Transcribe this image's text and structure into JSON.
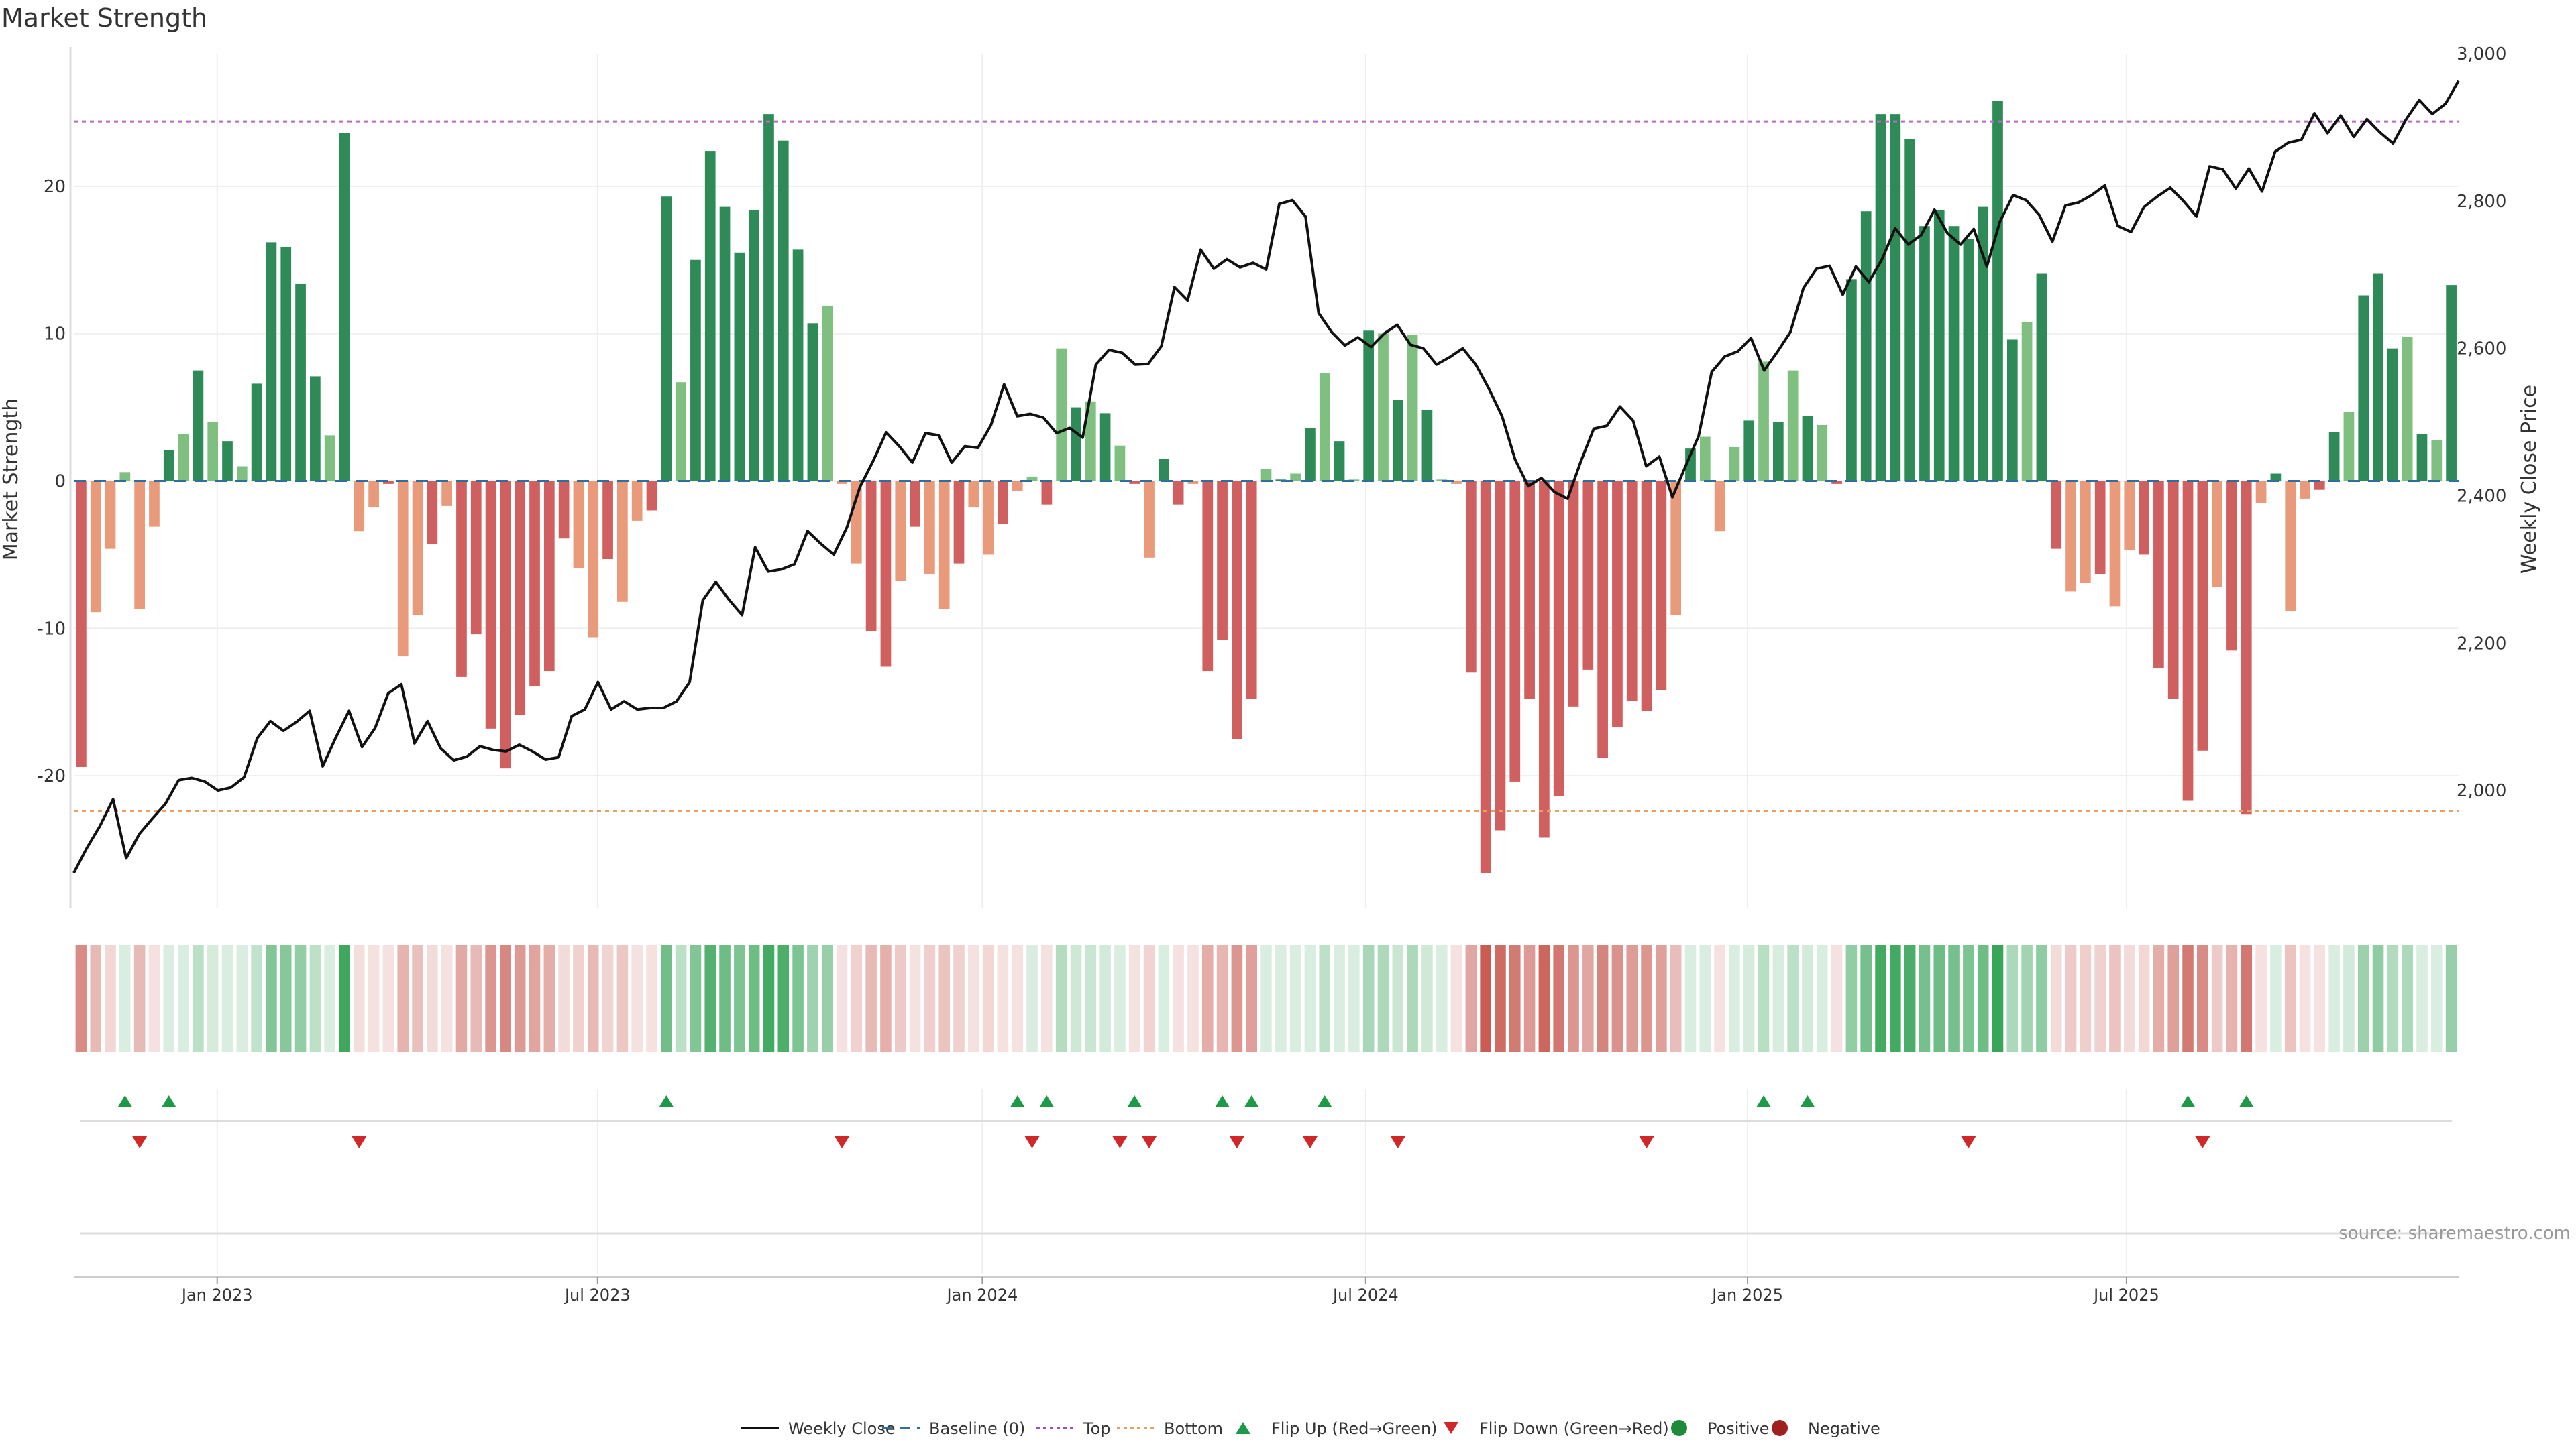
{
  "chart_data": {
    "type": "bar",
    "title": "Market Strength",
    "ylabel": "Market Strength",
    "y2label": "Weekly Close Price",
    "ylim": [
      -29,
      29
    ],
    "y2lim": [
      1840,
      3000
    ],
    "yticks": [
      {
        "v": 20,
        "label": "20"
      },
      {
        "v": 10,
        "label": "10"
      },
      {
        "v": 0,
        "label": "0"
      },
      {
        "v": -10,
        "label": "-10"
      },
      {
        "v": -20,
        "label": "-20"
      }
    ],
    "y2ticks": [
      {
        "v": 3000,
        "label": "3,000"
      },
      {
        "v": 2800,
        "label": "2,800"
      },
      {
        "v": 2600,
        "label": "2,600"
      },
      {
        "v": 2400,
        "label": "2,400"
      },
      {
        "v": 2200,
        "label": "2,200"
      },
      {
        "v": 2000,
        "label": "2,000"
      }
    ],
    "xticks": [
      {
        "i": 9.3,
        "label": "Jan 2023"
      },
      {
        "i": 35.3,
        "label": "Jul 2023"
      },
      {
        "i": 61.6,
        "label": "Jan 2024"
      },
      {
        "i": 87.8,
        "label": "Jul 2024"
      },
      {
        "i": 113.9,
        "label": "Jan 2025"
      },
      {
        "i": 139.8,
        "label": "Jul 2025"
      }
    ],
    "top_line": 24.4,
    "bottom_line": -22.4,
    "strength": [
      -19.4,
      -8.9,
      -4.6,
      0.6,
      -8.7,
      -3.1,
      2.1,
      3.2,
      7.5,
      4.0,
      2.7,
      1.0,
      6.6,
      16.2,
      15.9,
      13.4,
      7.1,
      3.1,
      23.6,
      -3.4,
      -1.8,
      -0.2,
      -11.9,
      -9.1,
      -4.3,
      -1.7,
      -13.3,
      -10.4,
      -16.8,
      -19.5,
      -15.9,
      -13.9,
      -12.9,
      -3.9,
      -5.9,
      -10.6,
      -5.3,
      -8.2,
      -2.7,
      -2.0,
      19.3,
      6.7,
      15.0,
      22.4,
      18.6,
      15.5,
      18.4,
      24.9,
      23.1,
      15.7,
      10.7,
      11.9,
      -0.2,
      -5.6,
      -10.2,
      -12.6,
      -6.8,
      -3.1,
      -6.3,
      -8.7,
      -5.6,
      -1.8,
      -5.0,
      -2.9,
      -0.7,
      0.3,
      -1.6,
      9.0,
      5.0,
      5.4,
      4.6,
      2.4,
      -0.2,
      -5.2,
      1.5,
      -1.6,
      -0.2,
      -12.9,
      -10.8,
      -17.5,
      -14.8,
      0.8,
      0.1,
      0.5,
      3.6,
      7.3,
      2.7,
      0.1,
      10.2,
      10.0,
      5.5,
      9.9,
      4.8,
      0.1,
      -0.2,
      -13.0,
      -26.6,
      -23.7,
      -20.4,
      -14.8,
      -24.2,
      -21.4,
      -15.3,
      -12.8,
      -18.8,
      -16.7,
      -14.9,
      -15.6,
      -14.2,
      -9.1,
      2.2,
      3.0,
      -3.4,
      2.3,
      4.1,
      8.1,
      4.0,
      7.5,
      4.4,
      3.8,
      -0.2,
      13.7,
      18.3,
      24.9,
      24.9,
      23.2,
      17.3,
      18.4,
      17.3,
      16.4,
      18.6,
      25.8,
      9.6,
      10.8,
      14.1,
      -4.6,
      -7.5,
      -6.9,
      -6.3,
      -8.5,
      -4.7,
      -5.0,
      -12.7,
      -14.8,
      -21.7,
      -18.3,
      -7.2,
      -11.5,
      -22.6,
      -1.5,
      0.5,
      -8.8,
      -1.2,
      -0.6,
      3.3,
      4.7,
      12.6,
      14.1,
      9.0,
      9.8,
      3.2,
      2.8,
      13.3
    ],
    "price": [
      1888,
      1922,
      1952,
      1988,
      1908,
      1941,
      1962,
      1982,
      2014,
      2017,
      2012,
      2000,
      2004,
      2018,
      2071,
      2094,
      2081,
      2093,
      2108,
      2033,
      2072,
      2108,
      2059,
      2085,
      2132,
      2144,
      2064,
      2094,
      2057,
      2041,
      2046,
      2060,
      2055,
      2053,
      2062,
      2053,
      2042,
      2045,
      2101,
      2110,
      2147,
      2110,
      2121,
      2110,
      2112,
      2112,
      2121,
      2147,
      2258,
      2283,
      2259,
      2238,
      2330,
      2297,
      2300,
      2307,
      2352,
      2335,
      2320,
      2357,
      2412,
      2447,
      2486,
      2467,
      2445,
      2485,
      2482,
      2445,
      2467,
      2465,
      2496,
      2551,
      2508,
      2511,
      2506,
      2485,
      2492,
      2479,
      2578,
      2598,
      2594,
      2578,
      2579,
      2603,
      2683,
      2665,
      2734,
      2708,
      2721,
      2710,
      2716,
      2707,
      2796,
      2801,
      2779,
      2648,
      2622,
      2604,
      2615,
      2602,
      2620,
      2632,
      2605,
      2600,
      2578,
      2588,
      2600,
      2578,
      2545,
      2508,
      2449,
      2413,
      2424,
      2405,
      2396,
      2446,
      2491,
      2495,
      2521,
      2502,
      2440,
      2453,
      2398,
      2440,
      2481,
      2568,
      2589,
      2596,
      2614,
      2570,
      2595,
      2622,
      2682,
      2708,
      2712,
      2673,
      2711,
      2690,
      2721,
      2763,
      2741,
      2754,
      2788,
      2756,
      2741,
      2762,
      2711,
      2772,
      2808,
      2801,
      2781,
      2745,
      2794,
      2798,
      2808,
      2821,
      2766,
      2758,
      2792,
      2806,
      2818,
      2800,
      2779,
      2847,
      2843,
      2817,
      2844,
      2813,
      2867,
      2879,
      2883,
      2919,
      2892,
      2916,
      2887,
      2911,
      2893,
      2878,
      2911,
      2937,
      2918,
      2932,
      2963
    ],
    "heat_strip": [
      -0.7,
      -0.42,
      -0.24,
      0.05,
      -0.42,
      -0.16,
      0.1,
      0.16,
      0.33,
      0.2,
      0.14,
      0.06,
      0.3,
      0.6,
      0.58,
      0.52,
      0.32,
      0.15,
      0.92,
      -0.2,
      -0.1,
      -0.05,
      -0.46,
      -0.38,
      -0.22,
      -0.1,
      -0.52,
      -0.42,
      -0.64,
      -0.72,
      -0.62,
      -0.55,
      -0.5,
      -0.22,
      -0.28,
      -0.42,
      -0.26,
      -0.34,
      -0.14,
      -0.11,
      0.68,
      0.33,
      0.6,
      0.82,
      0.7,
      0.62,
      0.7,
      0.9,
      0.85,
      0.62,
      0.46,
      0.5,
      -0.05,
      -0.28,
      -0.42,
      -0.48,
      -0.32,
      -0.16,
      -0.3,
      -0.36,
      -0.28,
      -0.11,
      -0.24,
      -0.16,
      -0.05,
      0.05,
      -0.1,
      0.36,
      0.24,
      0.26,
      0.22,
      0.13,
      -0.05,
      -0.26,
      0.08,
      -0.1,
      -0.05,
      -0.5,
      -0.44,
      -0.64,
      -0.58,
      0.05,
      0.02,
      0.04,
      0.18,
      0.32,
      0.14,
      0.02,
      0.42,
      0.4,
      0.26,
      0.4,
      0.23,
      0.02,
      -0.05,
      -0.54,
      -0.98,
      -0.9,
      -0.8,
      -0.62,
      -0.92,
      -0.82,
      -0.64,
      -0.54,
      -0.74,
      -0.66,
      -0.6,
      -0.64,
      -0.58,
      -0.4,
      0.1,
      0.14,
      -0.18,
      0.11,
      0.2,
      0.34,
      0.19,
      0.33,
      0.21,
      0.18,
      -0.05,
      0.52,
      0.66,
      0.9,
      0.9,
      0.86,
      0.66,
      0.7,
      0.66,
      0.62,
      0.7,
      0.95,
      0.4,
      0.45,
      0.54,
      -0.22,
      -0.32,
      -0.3,
      -0.28,
      -0.36,
      -0.22,
      -0.24,
      -0.5,
      -0.58,
      -0.8,
      -0.7,
      -0.32,
      -0.46,
      -0.82,
      -0.1,
      0.04,
      -0.36,
      -0.08,
      -0.06,
      0.15,
      0.22,
      0.48,
      0.54,
      0.38,
      0.4,
      0.15,
      0.14,
      0.5
    ],
    "flip_up": [
      3,
      6,
      40,
      64,
      66,
      72,
      78,
      80,
      85,
      115,
      118,
      144,
      148
    ],
    "flip_down": [
      4,
      19,
      52,
      65,
      71,
      73,
      79,
      84,
      90,
      107,
      129,
      145
    ],
    "series": [
      {
        "name": "Weekly Close",
        "style": "line",
        "color": "#111111"
      },
      {
        "name": "Baseline (0)",
        "style": "dashed",
        "color": "#2f6f9f"
      },
      {
        "name": "Top",
        "style": "dotted",
        "color": "#a050b0"
      },
      {
        "name": "Bottom",
        "style": "dotted",
        "color": "#e8a060"
      },
      {
        "name": "Flip Up (Red→Green)",
        "style": "triangle-up",
        "color": "#1d9a48"
      },
      {
        "name": "Flip Down (Green→Red)",
        "style": "triangle-down",
        "color": "#d02828"
      },
      {
        "name": "Positive",
        "style": "dot",
        "color": "#1f8a3a"
      },
      {
        "name": "Negative",
        "style": "dot",
        "color": "#a02020"
      }
    ],
    "colors": {
      "strong_pos": "#2e8b57",
      "weak_pos": "#7fbf7f",
      "strong_neg": "#d06060",
      "weak_neg": "#e89a7a",
      "top_line": "#b36cc0",
      "bottom_line": "#e8a060",
      "price_line": "#111111",
      "baseline": "#2f6f9f"
    },
    "legend_position": "bottom-center",
    "grid": true,
    "source": "source: sharemaestro.com"
  }
}
